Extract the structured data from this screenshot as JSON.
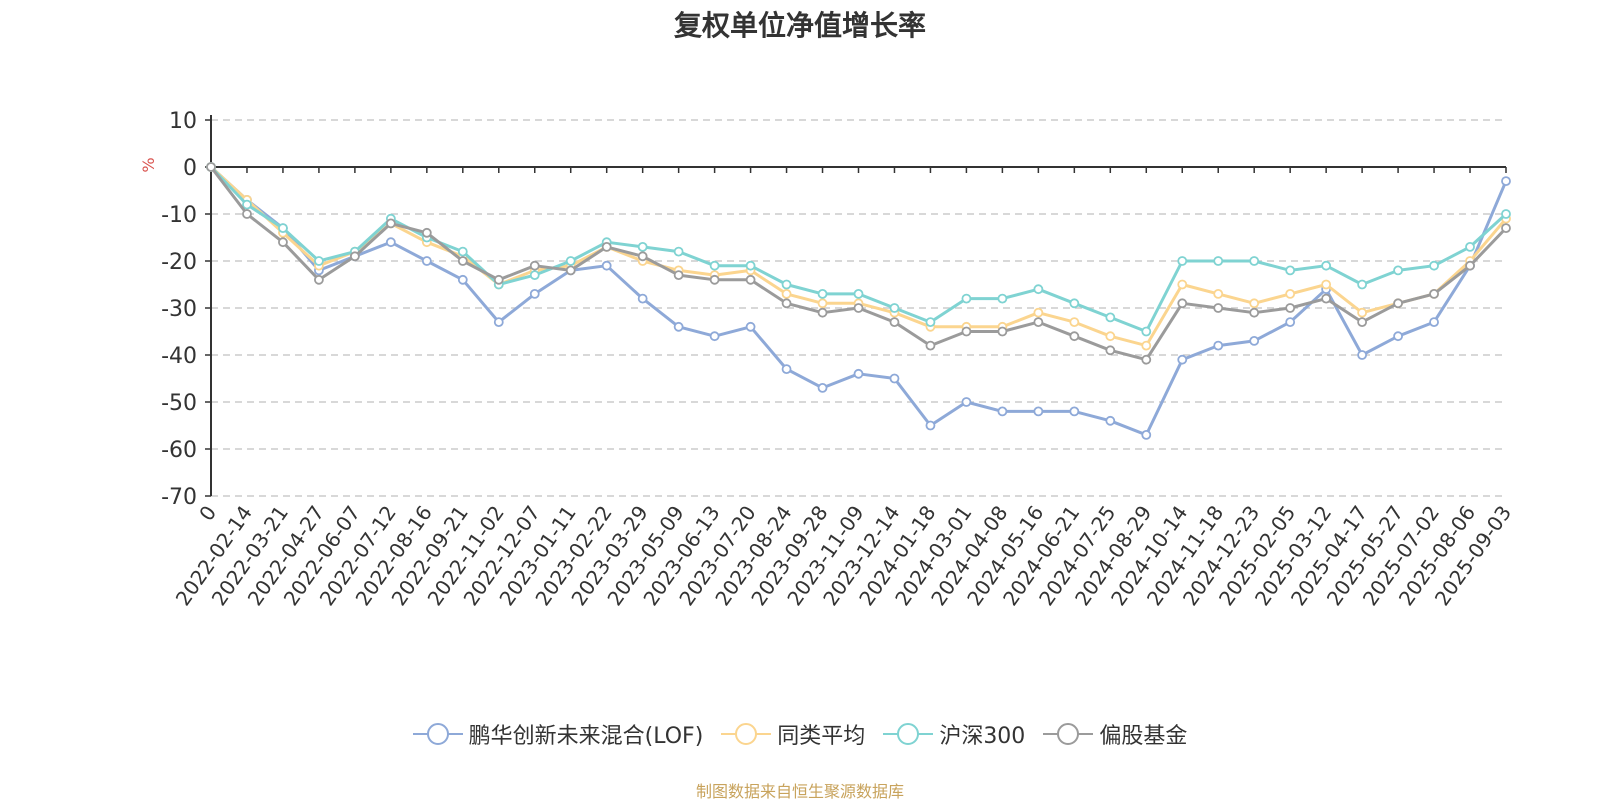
{
  "page": {
    "title": "复权单位净值增长率",
    "footer": "制图数据来自恒生聚源数据库"
  },
  "chart_data": {
    "type": "line",
    "title": "复权单位净值增长率",
    "ylabel": "%",
    "ylim": [
      -70,
      10
    ],
    "yticks": [
      10,
      0,
      -10,
      -20,
      -30,
      -40,
      -50,
      -60,
      -70
    ],
    "grid": true,
    "legend_position": "bottom",
    "x_tick_labels": [
      "0",
      "2022-02-14",
      "2022-03-21",
      "2022-04-27",
      "2022-06-07",
      "2022-07-12",
      "2022-08-16",
      "2022-09-21",
      "2022-11-02",
      "2022-12-07",
      "2023-01-11",
      "2023-02-22",
      "2023-03-29",
      "2023-05-09",
      "2023-06-13",
      "2023-07-20",
      "2023-08-24",
      "2023-09-28",
      "2023-11-09",
      "2023-12-14",
      "2024-01-18",
      "2024-03-01",
      "2024-04-08",
      "2024-05-16",
      "2024-06-21",
      "2024-07-25",
      "2024-08-29",
      "2024-10-14",
      "2024-11-18",
      "2024-12-23",
      "2025-02-05",
      "2025-03-12",
      "2025-04-17",
      "2025-05-27",
      "2025-07-02",
      "2025-08-06",
      "2025-09-03"
    ],
    "series": [
      {
        "name": "鹏华创新未来混合(LOF)",
        "color": "#8ea9d8",
        "values": [
          0,
          -7,
          -13,
          -22,
          -19,
          -16,
          -20,
          -24,
          -33,
          -27,
          -22,
          -21,
          -28,
          -34,
          -36,
          -34,
          -43,
          -47,
          -44,
          -45,
          -55,
          -50,
          -52,
          -52,
          -52,
          -54,
          -57,
          -41,
          -38,
          -37,
          -33,
          -26,
          -40,
          -36,
          -33,
          -21,
          -3
        ]
      },
      {
        "name": "同类平均",
        "color": "#fbd58f",
        "values": [
          0,
          -7,
          -14,
          -21,
          -18,
          -12,
          -16,
          -19,
          -25,
          -22,
          -21,
          -17,
          -20,
          -22,
          -23,
          -22,
          -27,
          -29,
          -29,
          -31,
          -34,
          -34,
          -34,
          -31,
          -33,
          -36,
          -38,
          -25,
          -27,
          -29,
          -27,
          -25,
          -31,
          -29,
          -27,
          -20,
          -11
        ]
      },
      {
        "name": "沪深300",
        "color": "#7fd3d2",
        "values": [
          0,
          -8,
          -13,
          -20,
          -18,
          -11,
          -15,
          -18,
          -25,
          -23,
          -20,
          -16,
          -17,
          -18,
          -21,
          -21,
          -25,
          -27,
          -27,
          -30,
          -33,
          -28,
          -28,
          -26,
          -29,
          -32,
          -35,
          -20,
          -20,
          -20,
          -22,
          -21,
          -25,
          -22,
          -21,
          -17,
          -10
        ]
      },
      {
        "name": "偏股基金",
        "color": "#9b9b9b",
        "values": [
          0,
          -10,
          -16,
          -24,
          -19,
          -12,
          -14,
          -20,
          -24,
          -21,
          -22,
          -17,
          -19,
          -23,
          -24,
          -24,
          -29,
          -31,
          -30,
          -33,
          -38,
          -35,
          -35,
          -33,
          -36,
          -39,
          -41,
          -29,
          -30,
          -31,
          -30,
          -28,
          -33,
          -29,
          -27,
          -21,
          -13
        ]
      }
    ]
  }
}
